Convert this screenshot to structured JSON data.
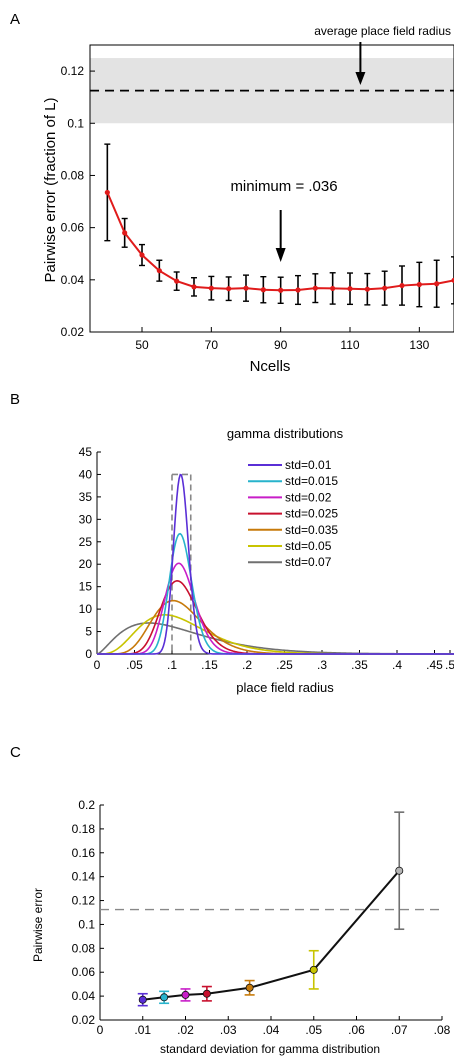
{
  "colors": {
    "red": "#e01b1b",
    "band": "#e3e3e3",
    "axis": "#000000",
    "connector": "#111111",
    "dashed_ref": "#888888",
    "series": [
      "#5a2fd6",
      "#27b3cc",
      "#c81ec8",
      "#c8102e",
      "#c77a0a",
      "#c8c400",
      "#707070"
    ]
  },
  "chart_data": [
    {
      "panel": "A",
      "type": "line",
      "title": "",
      "xlabel": "Ncells",
      "ylabel": "Pairwise error (fraction of L)",
      "xlim": [
        35,
        140
      ],
      "ylim": [
        0.02,
        0.13
      ],
      "xticks": [
        50,
        70,
        90,
        110,
        130
      ],
      "yticks": [
        0.02,
        0.04,
        0.06,
        0.08,
        0.1,
        0.12
      ],
      "ytick_labels": [
        "0.02",
        "0.04",
        "0.06",
        "0.08",
        "0.1",
        "0.12"
      ],
      "x": [
        40,
        45,
        50,
        55,
        60,
        65,
        70,
        75,
        80,
        85,
        90,
        95,
        100,
        105,
        110,
        115,
        120,
        125,
        130,
        135,
        140
      ],
      "y": [
        0.0735,
        0.058,
        0.0495,
        0.0435,
        0.0395,
        0.0373,
        0.0368,
        0.0366,
        0.0368,
        0.0362,
        0.036,
        0.0361,
        0.0368,
        0.0367,
        0.0366,
        0.0364,
        0.0368,
        0.0378,
        0.0382,
        0.0385,
        0.0398
      ],
      "err": [
        0.0185,
        0.0055,
        0.004,
        0.004,
        0.0035,
        0.0035,
        0.0045,
        0.0045,
        0.005,
        0.005,
        0.005,
        0.0055,
        0.0055,
        0.006,
        0.006,
        0.006,
        0.0065,
        0.0075,
        0.0085,
        0.009,
        0.009
      ],
      "reference": {
        "y": 0.1125,
        "band": [
          0.1,
          0.125
        ],
        "label": "average place field radius"
      },
      "annotation": {
        "text": "minimum = .036"
      }
    },
    {
      "panel": "B",
      "type": "line",
      "title": "gamma distributions",
      "xlabel": "place field radius",
      "ylabel": "",
      "xlim": [
        0,
        0.5
      ],
      "ylim": [
        0,
        45
      ],
      "xticks": [
        0,
        0.05,
        0.1,
        0.15,
        0.2,
        0.25,
        0.3,
        0.35,
        0.4,
        0.45,
        0.5
      ],
      "xtick_labels": [
        "0",
        ".05",
        ".1",
        ".15",
        ".2",
        ".25",
        ".3",
        ".35",
        ".4",
        ".45",
        ".5"
      ],
      "yticks": [
        0,
        5,
        10,
        15,
        20,
        25,
        30,
        35,
        40,
        45
      ],
      "mean": 0.1125,
      "dashed_x": [
        0.1,
        0.125
      ],
      "series": [
        {
          "name": "std=0.01",
          "std": 0.01
        },
        {
          "name": "std=0.015",
          "std": 0.015
        },
        {
          "name": "std=0.02",
          "std": 0.02
        },
        {
          "name": "std=0.025",
          "std": 0.025
        },
        {
          "name": "std=0.035",
          "std": 0.035
        },
        {
          "name": "std=0.05",
          "std": 0.05
        },
        {
          "name": "std=0.07",
          "std": 0.07
        }
      ],
      "legend": "top-right"
    },
    {
      "panel": "C",
      "type": "line",
      "title": "",
      "xlabel": "standard deviation for gamma distribution",
      "ylabel": "Pairwise error",
      "xlim": [
        0,
        0.08
      ],
      "ylim": [
        0.02,
        0.2
      ],
      "xticks": [
        0,
        0.01,
        0.02,
        0.03,
        0.04,
        0.05,
        0.06,
        0.07,
        0.08
      ],
      "xtick_labels": [
        "0",
        ".01",
        ".02",
        ".03",
        ".04",
        ".05",
        ".06",
        ".07",
        ".08"
      ],
      "yticks": [
        0.02,
        0.04,
        0.06,
        0.08,
        0.1,
        0.12,
        0.14,
        0.16,
        0.18,
        0.2
      ],
      "ytick_labels": [
        "0.02",
        "0.04",
        "0.06",
        "0.08",
        "0.1",
        "0.12",
        "0.14",
        "0.16",
        "0.18",
        "0.2"
      ],
      "x": [
        0.01,
        0.015,
        0.02,
        0.025,
        0.035,
        0.05,
        0.07
      ],
      "y": [
        0.037,
        0.039,
        0.041,
        0.042,
        0.047,
        0.062,
        0.145
      ],
      "err": [
        0.005,
        0.005,
        0.005,
        0.006,
        0.006,
        0.016,
        0.049
      ],
      "reference": {
        "y": 0.1125
      }
    }
  ]
}
